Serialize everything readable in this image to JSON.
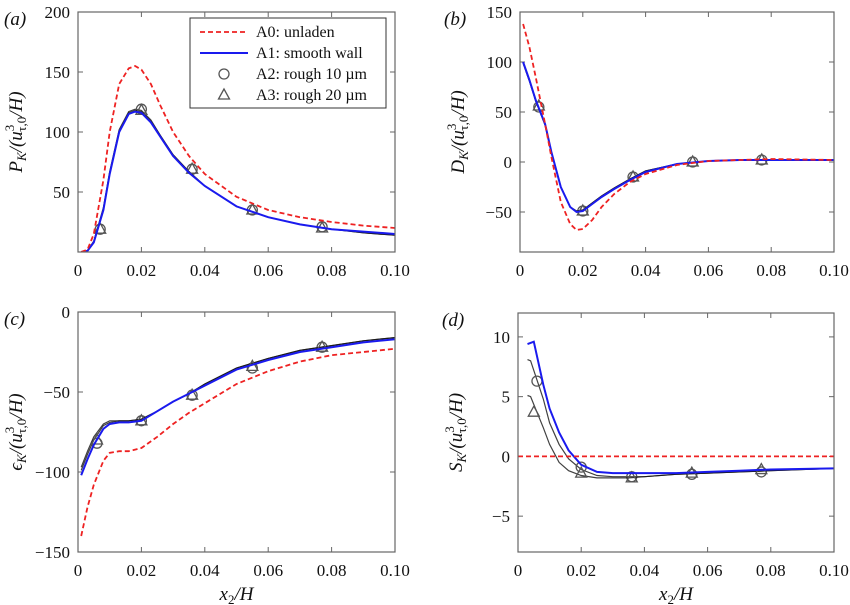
{
  "colors": {
    "A0": "#ee2222",
    "A1": "#1a1aee",
    "A2": "#111111",
    "A3": "#111111",
    "box": "#666666"
  },
  "legend": {
    "placement": "top-right",
    "entries": [
      {
        "key": "A0",
        "label": "A0: unladen",
        "style": "dashed-line"
      },
      {
        "key": "A1",
        "label": "A1: smooth wall",
        "style": "solid-line"
      },
      {
        "key": "A2",
        "label": "A2: rough 10 µm",
        "style": "circle-marker"
      },
      {
        "key": "A3",
        "label": "A3: rough 20 µm",
        "style": "triangle-marker"
      }
    ]
  },
  "chart_data": [
    {
      "type": "line",
      "panel": "(a)",
      "ylabel": {
        "sym": "P",
        "sub": "K",
        "den": "/(u",
        "sup": "3",
        "den_sub": "τ,0",
        "end": "/H)"
      },
      "xlabel": "",
      "xlim": [
        0,
        0.1
      ],
      "ylim": [
        0,
        200
      ],
      "xticks": [
        "0",
        "0.02",
        "0.04",
        "0.06",
        "0.08",
        "0.10"
      ],
      "yticks": [
        "50",
        "100",
        "150",
        "200"
      ],
      "series": [
        {
          "name": "A0: unladen",
          "key": "A0",
          "x": [
            0.001,
            0.003,
            0.005,
            0.008,
            0.01,
            0.013,
            0.016,
            0.018,
            0.02,
            0.023,
            0.026,
            0.03,
            0.035,
            0.04,
            0.05,
            0.06,
            0.07,
            0.08,
            0.09,
            0.1
          ],
          "y": [
            0,
            2,
            15,
            60,
            100,
            140,
            153,
            155,
            152,
            140,
            122,
            100,
            80,
            65,
            46,
            35,
            29,
            25,
            22,
            20
          ]
        },
        {
          "name": "A1: smooth wall",
          "key": "A1",
          "x": [
            0.001,
            0.003,
            0.005,
            0.008,
            0.01,
            0.013,
            0.016,
            0.018,
            0.02,
            0.023,
            0.026,
            0.03,
            0.035,
            0.04,
            0.05,
            0.06,
            0.07,
            0.08,
            0.09,
            0.1
          ],
          "y": [
            0,
            1,
            8,
            35,
            65,
            100,
            115,
            117,
            116,
            108,
            96,
            80,
            66,
            55,
            38,
            29,
            23,
            19,
            17,
            15
          ]
        },
        {
          "name": "A2: rough 10 µm",
          "key": "A2",
          "x": [
            0.001,
            0.003,
            0.005,
            0.008,
            0.01,
            0.013,
            0.016,
            0.018,
            0.02,
            0.023,
            0.026,
            0.03,
            0.035,
            0.04,
            0.05,
            0.06,
            0.07,
            0.08,
            0.09,
            0.1
          ],
          "y": [
            0,
            1,
            9,
            37,
            67,
            102,
            117,
            119,
            118,
            110,
            97,
            81,
            67,
            55,
            38,
            29,
            23,
            19,
            16,
            14
          ],
          "mx": [
            0.007,
            0.02,
            0.036,
            0.055,
            0.077
          ],
          "my": [
            19,
            119,
            69,
            35,
            21
          ]
        },
        {
          "name": "A3: rough 20 µm",
          "key": "A3",
          "x": [
            0.001,
            0.003,
            0.005,
            0.008,
            0.01,
            0.013,
            0.016,
            0.018,
            0.02,
            0.023,
            0.026,
            0.03,
            0.035,
            0.04,
            0.05,
            0.06,
            0.07,
            0.08,
            0.09,
            0.1
          ],
          "y": [
            0,
            1,
            9,
            36,
            66,
            101,
            116,
            118,
            117,
            109,
            97,
            81,
            67,
            55,
            38,
            29,
            23,
            19,
            16,
            14
          ],
          "mx": [
            0.007,
            0.02,
            0.036,
            0.055,
            0.077
          ],
          "my": [
            19,
            118,
            69,
            35,
            20
          ]
        }
      ]
    },
    {
      "type": "line",
      "panel": "(b)",
      "ylabel": {
        "sym": "D",
        "sub": "K",
        "den": "/(u",
        "sup": "3",
        "den_sub": "τ,0",
        "end": "/H)"
      },
      "xlabel": "",
      "xlim": [
        0,
        0.1
      ],
      "ylim": [
        -90,
        150
      ],
      "xticks": [
        "0",
        "0.02",
        "0.04",
        "0.06",
        "0.08",
        "0.10"
      ],
      "yticks": [
        "-50",
        "0",
        "50",
        "100",
        "150"
      ],
      "series": [
        {
          "name": "A0: unladen",
          "key": "A0",
          "x": [
            0.001,
            0.003,
            0.005,
            0.008,
            0.01,
            0.013,
            0.016,
            0.018,
            0.02,
            0.023,
            0.026,
            0.03,
            0.035,
            0.04,
            0.05,
            0.06,
            0.07,
            0.08,
            0.1
          ],
          "y": [
            138,
            115,
            85,
            38,
            5,
            -40,
            -62,
            -68,
            -67,
            -58,
            -45,
            -32,
            -20,
            -12,
            -3,
            1,
            2,
            3,
            2
          ]
        },
        {
          "name": "A1: smooth wall",
          "key": "A1",
          "x": [
            0.001,
            0.003,
            0.005,
            0.008,
            0.01,
            0.013,
            0.016,
            0.018,
            0.02,
            0.023,
            0.026,
            0.03,
            0.035,
            0.04,
            0.05,
            0.06,
            0.07,
            0.08,
            0.1
          ],
          "y": [
            100,
            82,
            62,
            38,
            10,
            -25,
            -45,
            -50,
            -49,
            -42,
            -35,
            -27,
            -18,
            -10,
            -2,
            1,
            2,
            2,
            2
          ]
        },
        {
          "name": "A2: rough 10 µm",
          "key": "A2",
          "x": [
            0.001,
            0.003,
            0.005,
            0.008,
            0.01,
            0.013,
            0.016,
            0.018,
            0.02,
            0.023,
            0.026,
            0.03,
            0.035,
            0.04,
            0.05,
            0.06,
            0.07,
            0.08,
            0.1
          ],
          "y": [
            99,
            81,
            61,
            37,
            9,
            -25,
            -45,
            -49,
            -48,
            -41,
            -34,
            -26,
            -17,
            -9,
            -2,
            1,
            2,
            2,
            2
          ],
          "mx": [
            0.006,
            0.02,
            0.036,
            0.055,
            0.077
          ],
          "my": [
            55,
            -49,
            -15,
            0,
            2
          ]
        },
        {
          "name": "A3: rough 20 µm",
          "key": "A3",
          "x": [
            0.001,
            0.003,
            0.005,
            0.008,
            0.01,
            0.013,
            0.016,
            0.018,
            0.02,
            0.023,
            0.026,
            0.03,
            0.035,
            0.04,
            0.05,
            0.06,
            0.07,
            0.08,
            0.1
          ],
          "y": [
            99,
            81,
            61,
            37,
            9,
            -25,
            -45,
            -49,
            -48,
            -41,
            -34,
            -26,
            -17,
            -9,
            -2,
            1,
            2,
            2,
            2
          ],
          "mx": [
            0.006,
            0.02,
            0.036,
            0.055,
            0.077
          ],
          "my": [
            56,
            -49,
            -15,
            0,
            2
          ]
        }
      ]
    },
    {
      "type": "line",
      "panel": "(c)",
      "ylabel": {
        "sym": "ϵ",
        "sub": "K",
        "den": "/(u",
        "sup": "3",
        "den_sub": "τ,0",
        "end": "/H)"
      },
      "xlabel": {
        "sym": "x",
        "sub": "2",
        "end": "/H"
      },
      "xlim": [
        0,
        0.1
      ],
      "ylim": [
        -150,
        0
      ],
      "xticks": [
        "0",
        "0.02",
        "0.04",
        "0.06",
        "0.08",
        "0.10"
      ],
      "yticks": [
        "-150",
        "-100",
        "-50",
        "0"
      ],
      "series": [
        {
          "name": "A0: unladen",
          "key": "A0",
          "x": [
            0.001,
            0.003,
            0.005,
            0.008,
            0.01,
            0.013,
            0.016,
            0.02,
            0.025,
            0.03,
            0.035,
            0.04,
            0.05,
            0.06,
            0.07,
            0.08,
            0.09,
            0.1
          ],
          "y": [
            -140,
            -122,
            -108,
            -93,
            -88,
            -87,
            -87,
            -85,
            -78,
            -70,
            -63,
            -57,
            -45,
            -37,
            -31,
            -27,
            -25,
            -23
          ]
        },
        {
          "name": "A1: smooth wall",
          "key": "A1",
          "x": [
            0.001,
            0.003,
            0.005,
            0.008,
            0.01,
            0.013,
            0.016,
            0.02,
            0.025,
            0.03,
            0.035,
            0.04,
            0.05,
            0.06,
            0.07,
            0.08,
            0.09,
            0.1
          ],
          "y": [
            -102,
            -92,
            -83,
            -73,
            -70,
            -69,
            -69,
            -68,
            -62,
            -56,
            -51,
            -46,
            -36,
            -30,
            -25,
            -22,
            -19,
            -17
          ]
        },
        {
          "name": "A2: rough 10 µm",
          "key": "A2",
          "x": [
            0.001,
            0.003,
            0.005,
            0.008,
            0.01,
            0.013,
            0.016,
            0.02,
            0.025,
            0.03,
            0.035,
            0.04,
            0.05,
            0.06,
            0.07,
            0.08,
            0.09,
            0.1
          ],
          "y": [
            -99,
            -89,
            -80,
            -71,
            -69,
            -68,
            -68,
            -67,
            -62,
            -56,
            -51,
            -45,
            -35,
            -29,
            -24,
            -21,
            -18,
            -16
          ],
          "mx": [
            0.006,
            0.02,
            0.036,
            0.055,
            0.077
          ],
          "my": [
            -82,
            -68,
            -52,
            -35,
            -22
          ]
        },
        {
          "name": "A3: rough 20 µm",
          "key": "A3",
          "x": [
            0.001,
            0.003,
            0.005,
            0.008,
            0.01,
            0.013,
            0.016,
            0.02,
            0.025,
            0.03,
            0.035,
            0.04,
            0.05,
            0.06,
            0.07,
            0.08,
            0.09,
            0.1
          ],
          "y": [
            -97,
            -87,
            -78,
            -70,
            -68,
            -68,
            -68,
            -67,
            -62,
            -56,
            -51,
            -45,
            -35,
            -29,
            -24,
            -21,
            -18,
            -16
          ],
          "mx": [
            0.006,
            0.02,
            0.036,
            0.055,
            0.077
          ],
          "my": [
            -80,
            -68,
            -52,
            -34,
            -22
          ]
        }
      ]
    },
    {
      "type": "line",
      "panel": "(d)",
      "ylabel": {
        "sym": "S",
        "sub": "K",
        "den": "/(u",
        "sup": "3",
        "den_sub": "τ,0",
        "end": "/H)"
      },
      "xlabel": {
        "sym": "x",
        "sub": "2",
        "end": "/H"
      },
      "xlim": [
        0,
        0.1
      ],
      "ylim": [
        -8,
        12
      ],
      "xticks": [
        "0",
        "0.02",
        "0.04",
        "0.06",
        "0.08",
        "0.10"
      ],
      "yticks": [
        "-5",
        "0",
        "5",
        "10"
      ],
      "series": [
        {
          "name": "A0: unladen",
          "key": "A0",
          "x": [
            0,
            0.1
          ],
          "y": [
            0,
            0
          ]
        },
        {
          "name": "A1: smooth wall",
          "key": "A1",
          "x": [
            0.003,
            0.005,
            0.008,
            0.01,
            0.013,
            0.016,
            0.02,
            0.025,
            0.03,
            0.035,
            0.04,
            0.05,
            0.06,
            0.07,
            0.08,
            0.1
          ],
          "y": [
            9.4,
            9.6,
            6,
            4,
            2,
            0.5,
            -0.7,
            -1.3,
            -1.4,
            -1.4,
            -1.4,
            -1.4,
            -1.3,
            -1.2,
            -1.1,
            -1.0
          ]
        },
        {
          "name": "A2: rough 10 µm",
          "key": "A2",
          "x": [
            0.003,
            0.004,
            0.008,
            0.01,
            0.013,
            0.016,
            0.02,
            0.025,
            0.03,
            0.035,
            0.04,
            0.05,
            0.06,
            0.07,
            0.08,
            0.1
          ],
          "y": [
            8.1,
            8,
            4.8,
            2.8,
            1,
            -0.2,
            -1.1,
            -1.6,
            -1.7,
            -1.7,
            -1.7,
            -1.5,
            -1.4,
            -1.3,
            -1.2,
            -1.0
          ],
          "mx": [
            0.006,
            0.02,
            0.036,
            0.055,
            0.077
          ],
          "my": [
            6.3,
            -0.9,
            -1.7,
            -1.5,
            -1.3
          ]
        },
        {
          "name": "A3: rough 20 µm",
          "key": "A3",
          "x": [
            0.003,
            0.004,
            0.008,
            0.01,
            0.013,
            0.016,
            0.02,
            0.025,
            0.03,
            0.035,
            0.04,
            0.05,
            0.06,
            0.07,
            0.08,
            0.1
          ],
          "y": [
            5.1,
            5,
            2.4,
            1,
            -0.5,
            -1.2,
            -1.6,
            -1.8,
            -1.8,
            -1.8,
            -1.7,
            -1.5,
            -1.4,
            -1.3,
            -1.2,
            -1.0
          ],
          "mx": [
            0.005,
            0.02,
            0.036,
            0.055,
            0.077
          ],
          "my": [
            3.7,
            -1.4,
            -1.8,
            -1.4,
            -1.1
          ]
        }
      ]
    }
  ]
}
